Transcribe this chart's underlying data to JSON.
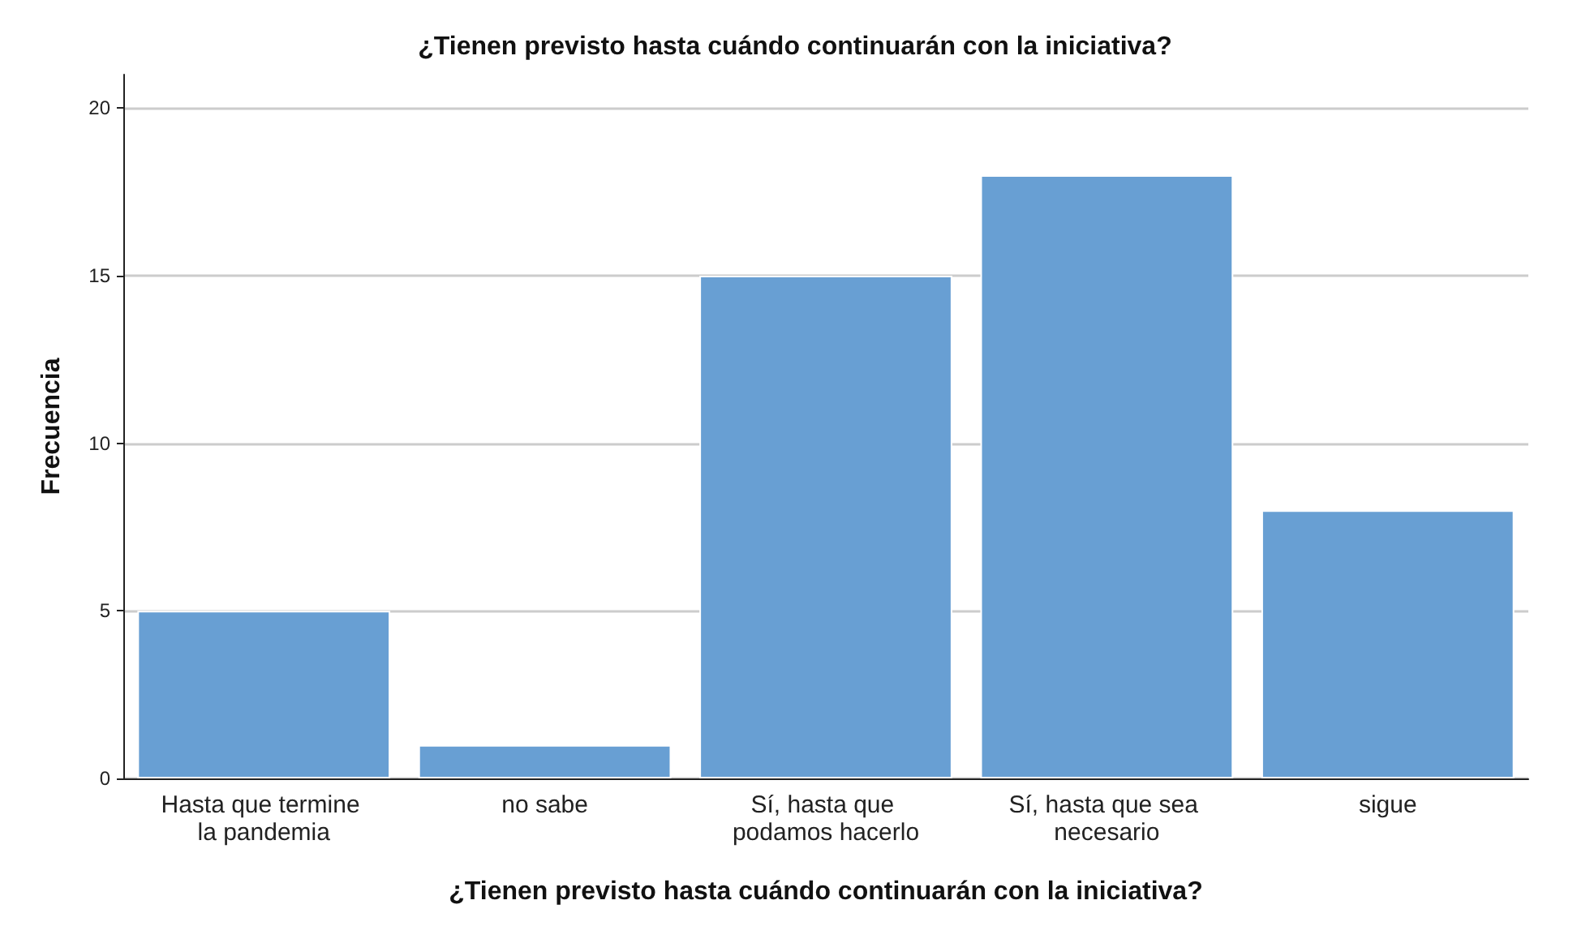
{
  "chart_data": {
    "type": "bar",
    "title": "¿Tienen previsto hasta cuándo continuarán con la iniciativa?",
    "xlabel": "¿Tienen previsto hasta cuándo continuarán con la iniciativa?",
    "ylabel": "Frecuencia",
    "categories": [
      "Hasta que termine la pandemia",
      "no sabe",
      "Sí, hasta que podamos hacerlo",
      "Sí, hasta que sea necesario",
      "sigue"
    ],
    "values": [
      5,
      1,
      15,
      18,
      8
    ],
    "color": "#689fd3",
    "ylim": [
      0,
      21
    ],
    "yticks": [
      0,
      5,
      10,
      15,
      20
    ],
    "grid": "y"
  }
}
